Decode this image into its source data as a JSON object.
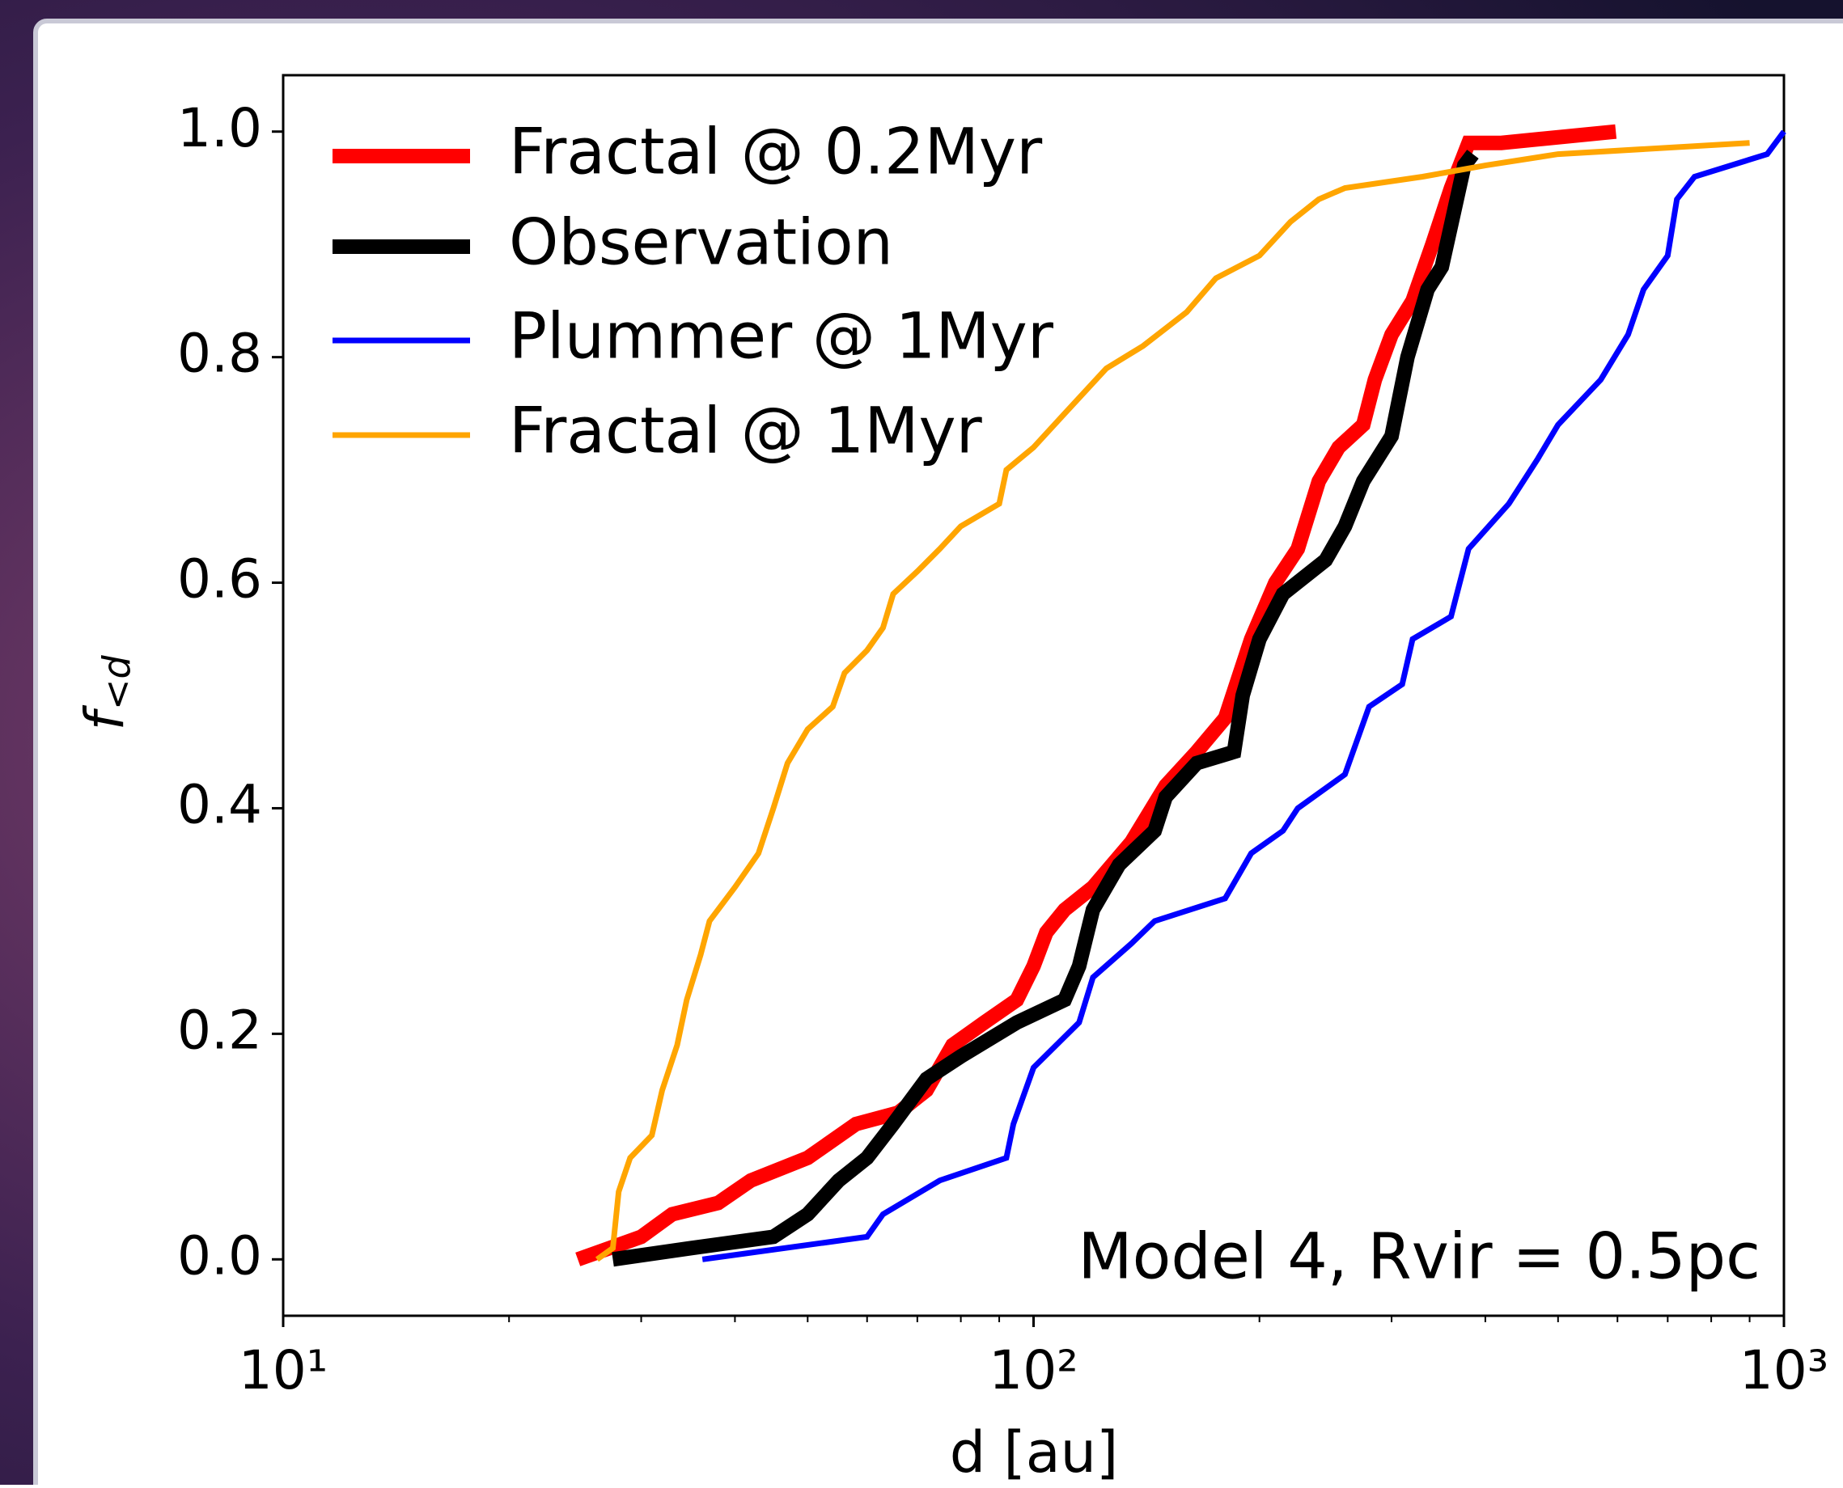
{
  "chart_data": {
    "type": "line",
    "xlabel": "d [au]",
    "ylabel": "f",
    "ylabel_sub": "<d",
    "annotation": "Model 4, Rvir = 0.5pc",
    "xscale": "log",
    "xlim": [
      10,
      1000
    ],
    "xticks": [
      {
        "value": 10,
        "label": "10¹"
      },
      {
        "value": 100,
        "label": "10²"
      },
      {
        "value": 1000,
        "label": "10³"
      }
    ],
    "xminor_ticks": [
      20,
      30,
      40,
      50,
      60,
      70,
      80,
      90,
      200,
      300,
      400,
      500,
      600,
      700,
      800,
      900
    ],
    "ylim": [
      -0.05,
      1.05
    ],
    "yticks": [
      {
        "value": 0,
        "label": "0.0"
      },
      0.2,
      0.4,
      0.6,
      0.8,
      {
        "value": 1,
        "label": "1.0"
      }
    ],
    "legend": "upper left",
    "series": [
      {
        "name": "Fractal @ 0.2Myr",
        "color": "#ff0000",
        "width": 18,
        "x": [
          24.7,
          30,
          33,
          38,
          42,
          50,
          58,
          66,
          72,
          78,
          86,
          95,
          100,
          104,
          110,
          120,
          135,
          150,
          165,
          180,
          195,
          210,
          225,
          240,
          255,
          275,
          285,
          300,
          320,
          340,
          360,
          380,
          420,
          597
        ],
        "values": [
          0.0,
          0.02,
          0.04,
          0.05,
          0.07,
          0.09,
          0.12,
          0.13,
          0.15,
          0.19,
          0.21,
          0.23,
          0.26,
          0.29,
          0.31,
          0.33,
          0.37,
          0.42,
          0.45,
          0.48,
          0.55,
          0.6,
          0.63,
          0.69,
          0.72,
          0.74,
          0.78,
          0.82,
          0.85,
          0.9,
          0.95,
          0.99,
          0.99,
          1.0
        ]
      },
      {
        "name": "Observation",
        "color": "#000000",
        "width": 18,
        "x": [
          27.5,
          35,
          45,
          50,
          55,
          60,
          65,
          72,
          80,
          95,
          110,
          115,
          120,
          130,
          145,
          150,
          165,
          185,
          190,
          200,
          215,
          245,
          260,
          275,
          300,
          315,
          335,
          350,
          375,
          385
        ],
        "values": [
          0.0,
          0.01,
          0.02,
          0.04,
          0.07,
          0.09,
          0.12,
          0.16,
          0.18,
          0.21,
          0.23,
          0.26,
          0.31,
          0.35,
          0.38,
          0.41,
          0.44,
          0.45,
          0.5,
          0.55,
          0.59,
          0.62,
          0.65,
          0.69,
          0.73,
          0.8,
          0.86,
          0.88,
          0.97,
          0.98
        ]
      },
      {
        "name": "Plummer @ 1Myr",
        "color": "#0000ff",
        "width": 7,
        "x": [
          36.2,
          60,
          63,
          75,
          92,
          94,
          100,
          115,
          120,
          135,
          145,
          180,
          195,
          215,
          225,
          260,
          280,
          310,
          320,
          360,
          380,
          430,
          470,
          500,
          570,
          620,
          650,
          700,
          720,
          760,
          950,
          1000
        ],
        "values": [
          0.0,
          0.02,
          0.04,
          0.07,
          0.09,
          0.12,
          0.17,
          0.21,
          0.25,
          0.28,
          0.3,
          0.32,
          0.36,
          0.38,
          0.4,
          0.43,
          0.49,
          0.51,
          0.55,
          0.57,
          0.63,
          0.67,
          0.71,
          0.74,
          0.78,
          0.82,
          0.86,
          0.89,
          0.94,
          0.96,
          0.98,
          1.0
        ]
      },
      {
        "name": "Fractal @ 1Myr",
        "color": "#ffa500",
        "width": 7,
        "x": [
          26.2,
          27.5,
          28,
          29,
          31,
          32,
          33.5,
          34.5,
          36,
          37,
          40,
          43,
          45,
          47,
          50,
          54,
          56,
          60,
          63,
          65,
          70,
          75,
          80,
          90,
          92,
          100,
          110,
          125,
          140,
          160,
          175,
          200,
          220,
          240,
          260,
          330,
          400,
          500,
          900
        ],
        "values": [
          0.0,
          0.01,
          0.06,
          0.09,
          0.11,
          0.15,
          0.19,
          0.23,
          0.27,
          0.3,
          0.33,
          0.36,
          0.4,
          0.44,
          0.47,
          0.49,
          0.52,
          0.54,
          0.56,
          0.59,
          0.61,
          0.63,
          0.65,
          0.67,
          0.7,
          0.72,
          0.75,
          0.79,
          0.81,
          0.84,
          0.87,
          0.89,
          0.92,
          0.94,
          0.95,
          0.96,
          0.97,
          0.98,
          0.99
        ]
      }
    ]
  }
}
